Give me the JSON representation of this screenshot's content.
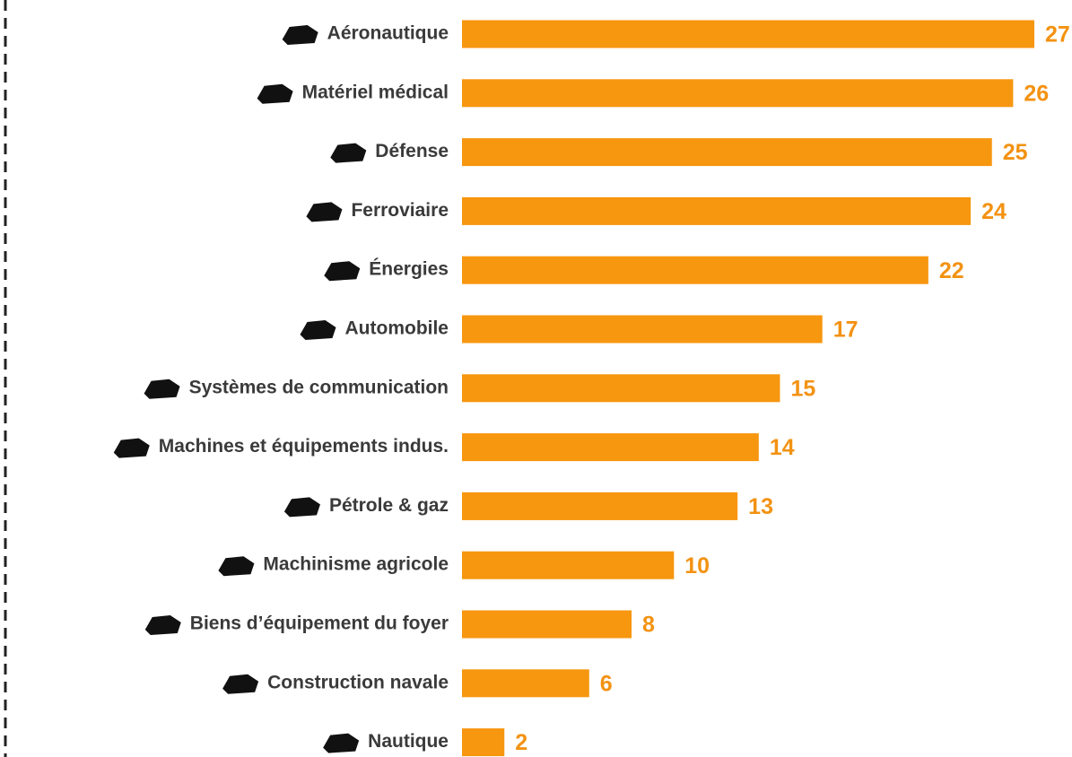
{
  "chart_data": {
    "type": "bar",
    "orientation": "horizontal",
    "categories": [
      "Aéronautique",
      "Matériel médical",
      "Défense",
      "Ferroviaire",
      "Énergies",
      "Automobile",
      "Systèmes de communication",
      "Machines et équipements indus.",
      "Pétrole & gaz",
      "Machinisme agricole",
      "Biens d’équipement du foyer",
      "Construction navale",
      "Nautique"
    ],
    "values": [
      27,
      26,
      25,
      24,
      22,
      17,
      15,
      14,
      13,
      10,
      8,
      6,
      2
    ],
    "color": "#f7960f"
  }
}
